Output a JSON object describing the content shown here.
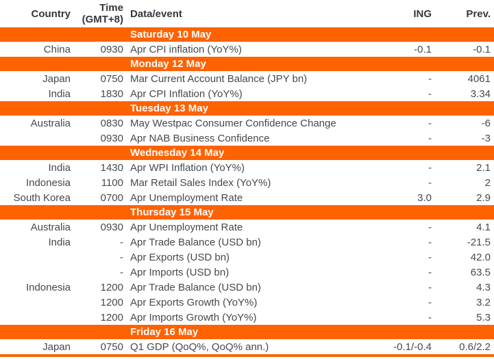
{
  "accent_color": "#FF6200",
  "header": {
    "country": "Country",
    "time_line1": "Time",
    "time_line2": "(GMT+8)",
    "data_event": "Data/event",
    "ing": "ING",
    "prev": "Prev."
  },
  "sections": [
    {
      "day": "Saturday 10 May",
      "rows": [
        {
          "country": "China",
          "time": "0930",
          "event": "Apr CPI inflation (YoY%)",
          "ing": "-0.1",
          "prev": "-0.1"
        }
      ]
    },
    {
      "day": "Monday 12 May",
      "rows": [
        {
          "country": "Japan",
          "time": "0750",
          "event": "Mar Current Account Balance (JPY bn)",
          "ing": "-",
          "prev": "4061"
        },
        {
          "country": "India",
          "time": "1830",
          "event": "Apr CPI Inflation (YoY%)",
          "ing": "-",
          "prev": "3.34"
        }
      ]
    },
    {
      "day": "Tuesday 13 May",
      "rows": [
        {
          "country": "Australia",
          "time": "0830",
          "event": "May Westpac Consumer Confidence Change",
          "ing": "-",
          "prev": "-6"
        },
        {
          "country": "",
          "time": "0930",
          "event": "Apr NAB Business Confidence",
          "ing": "-",
          "prev": "-3"
        }
      ]
    },
    {
      "day": "Wednesday 14 May",
      "rows": [
        {
          "country": "India",
          "time": "1430",
          "event": "Apr WPI Inflation (YoY%)",
          "ing": "-",
          "prev": "2.1"
        },
        {
          "country": "Indonesia",
          "time": "1100",
          "event": "Mar Retail Sales Index (YoY%)",
          "ing": "-",
          "prev": "2"
        },
        {
          "country": "South Korea",
          "time": "0700",
          "event": "Apr Unemployment Rate",
          "ing": "3.0",
          "prev": "2.9"
        }
      ]
    },
    {
      "day": "Thursday 15 May",
      "rows": [
        {
          "country": "Australia",
          "time": "0930",
          "event": "Apr Unemployment Rate",
          "ing": "-",
          "prev": "4.1"
        },
        {
          "country": "India",
          "time": "-",
          "event": "Apr Trade Balance (USD bn)",
          "ing": "-",
          "prev": "-21.5"
        },
        {
          "country": "",
          "time": "-",
          "event": "Apr Exports (USD bn)",
          "ing": "-",
          "prev": "42.0"
        },
        {
          "country": "",
          "time": "-",
          "event": "Apr Imports (USD bn)",
          "ing": "-",
          "prev": "63.5"
        },
        {
          "country": "Indonesia",
          "time": "1200",
          "event": "Apr Trade Balance (USD bn)",
          "ing": "-",
          "prev": "4.3"
        },
        {
          "country": "",
          "time": "1200",
          "event": "Apr Exports Growth (YoY%)",
          "ing": "-",
          "prev": "3.2"
        },
        {
          "country": "",
          "time": "1200",
          "event": "Apr Imports Growth (YoY%)",
          "ing": "-",
          "prev": "5.3"
        }
      ]
    },
    {
      "day": "Friday 16 May",
      "rows": [
        {
          "country": "Japan",
          "time": "0750",
          "event": "Q1 GDP (QoQ%, QoQ% ann.)",
          "ing": "-0.1/-0.4",
          "prev": "0.6/2.2"
        }
      ]
    }
  ]
}
